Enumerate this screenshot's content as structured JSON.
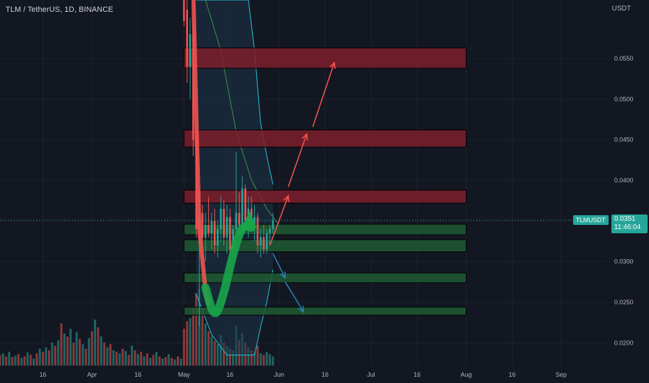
{
  "symbol": {
    "title": "TLM / TetherUS, 1D, BINANCE",
    "ticker": "TLMUSDT",
    "last_price": "0.0351",
    "countdown": "11:46:04"
  },
  "price_axis": {
    "unit": "USDT"
  },
  "colors": {
    "background": "#131722",
    "grid": "#1e222d",
    "axis_text": "#b2b5be",
    "up": "#26a69a",
    "down": "#ef5350",
    "resistance_zone": "#7e1f2a",
    "support_zone": "#1e5a32",
    "band_fill": "#1c3448",
    "band_line": "#26c6da",
    "bullish_arrow": "#19a64a",
    "bearish_arrow": "#ef5350",
    "down_projection": "#2a7fb5"
  },
  "chart_data": {
    "type": "candlestick",
    "title": "TLM / TetherUS, 1D, BINANCE",
    "ylabel": "USDT",
    "ylim": [
      0.0172,
      0.0622
    ],
    "y_ticks": [
      "0.0550",
      "0.0500",
      "0.0450",
      "0.0400",
      "0.0350",
      "0.0300",
      "0.0250",
      "0.0200"
    ],
    "y_tick_values": [
      0.055,
      0.05,
      0.045,
      0.04,
      0.035,
      0.03,
      0.025,
      0.02
    ],
    "x_ticks": [
      "16",
      "Apr",
      "16",
      "May",
      "16",
      "Jun",
      "16",
      "Jul",
      "16",
      "Aug",
      "16",
      "Sep"
    ],
    "x_tick_days": [
      15,
      31,
      46,
      61,
      76,
      92,
      107,
      122,
      137,
      153,
      168,
      184
    ],
    "x_range_days": [
      1,
      199
    ],
    "current_price": 0.0351,
    "candles_range_days": [
      61,
      90
    ],
    "candles": [
      {
        "day": 61,
        "o": 0.064,
        "h": 0.068,
        "l": 0.059,
        "c": 0.061
      },
      {
        "day": 62,
        "o": 0.061,
        "h": 0.063,
        "l": 0.052,
        "c": 0.054
      },
      {
        "day": 63,
        "o": 0.054,
        "h": 0.06,
        "l": 0.05,
        "c": 0.058
      },
      {
        "day": 64,
        "o": 0.058,
        "h": 0.06,
        "l": 0.043,
        "c": 0.045
      },
      {
        "day": 65,
        "o": 0.045,
        "h": 0.047,
        "l": 0.033,
        "c": 0.034
      },
      {
        "day": 66,
        "o": 0.034,
        "h": 0.039,
        "l": 0.022,
        "c": 0.036
      },
      {
        "day": 67,
        "o": 0.036,
        "h": 0.037,
        "l": 0.03,
        "c": 0.033
      },
      {
        "day": 68,
        "o": 0.033,
        "h": 0.036,
        "l": 0.03,
        "c": 0.0345
      },
      {
        "day": 69,
        "o": 0.0345,
        "h": 0.038,
        "l": 0.033,
        "c": 0.0335
      },
      {
        "day": 70,
        "o": 0.0335,
        "h": 0.036,
        "l": 0.0315,
        "c": 0.035
      },
      {
        "day": 71,
        "o": 0.035,
        "h": 0.0365,
        "l": 0.031,
        "c": 0.032
      },
      {
        "day": 72,
        "o": 0.032,
        "h": 0.035,
        "l": 0.0305,
        "c": 0.034
      },
      {
        "day": 73,
        "o": 0.034,
        "h": 0.038,
        "l": 0.0325,
        "c": 0.0365
      },
      {
        "day": 74,
        "o": 0.0365,
        "h": 0.0375,
        "l": 0.032,
        "c": 0.033
      },
      {
        "day": 75,
        "o": 0.033,
        "h": 0.037,
        "l": 0.031,
        "c": 0.0355
      },
      {
        "day": 76,
        "o": 0.0355,
        "h": 0.0365,
        "l": 0.03,
        "c": 0.0315
      },
      {
        "day": 77,
        "o": 0.0315,
        "h": 0.0345,
        "l": 0.0305,
        "c": 0.034
      },
      {
        "day": 78,
        "o": 0.034,
        "h": 0.0435,
        "l": 0.033,
        "c": 0.036
      },
      {
        "day": 79,
        "o": 0.036,
        "h": 0.0385,
        "l": 0.0335,
        "c": 0.0345
      },
      {
        "day": 80,
        "o": 0.0345,
        "h": 0.0405,
        "l": 0.0335,
        "c": 0.039
      },
      {
        "day": 81,
        "o": 0.039,
        "h": 0.0395,
        "l": 0.034,
        "c": 0.035
      },
      {
        "day": 82,
        "o": 0.035,
        "h": 0.038,
        "l": 0.033,
        "c": 0.0365
      },
      {
        "day": 83,
        "o": 0.0365,
        "h": 0.038,
        "l": 0.034,
        "c": 0.0345
      },
      {
        "day": 84,
        "o": 0.0345,
        "h": 0.037,
        "l": 0.0325,
        "c": 0.0355
      },
      {
        "day": 85,
        "o": 0.0355,
        "h": 0.036,
        "l": 0.031,
        "c": 0.032
      },
      {
        "day": 86,
        "o": 0.032,
        "h": 0.034,
        "l": 0.0305,
        "c": 0.033
      },
      {
        "day": 87,
        "o": 0.033,
        "h": 0.0345,
        "l": 0.031,
        "c": 0.0315
      },
      {
        "day": 88,
        "o": 0.0315,
        "h": 0.034,
        "l": 0.031,
        "c": 0.0335
      },
      {
        "day": 89,
        "o": 0.0335,
        "h": 0.0345,
        "l": 0.032,
        "c": 0.034
      },
      {
        "day": 90,
        "o": 0.034,
        "h": 0.036,
        "l": 0.0335,
        "c": 0.0351
      }
    ],
    "volume": {
      "max": 100,
      "bars": [
        {
          "day": 1,
          "v": 14,
          "up": false
        },
        {
          "day": 2,
          "v": 16,
          "up": true
        },
        {
          "day": 3,
          "v": 12,
          "up": false
        },
        {
          "day": 4,
          "v": 18,
          "up": true
        },
        {
          "day": 5,
          "v": 11,
          "up": false
        },
        {
          "day": 6,
          "v": 13,
          "up": true
        },
        {
          "day": 7,
          "v": 15,
          "up": false
        },
        {
          "day": 8,
          "v": 10,
          "up": true
        },
        {
          "day": 9,
          "v": 12,
          "up": false
        },
        {
          "day": 10,
          "v": 17,
          "up": true
        },
        {
          "day": 11,
          "v": 14,
          "up": false
        },
        {
          "day": 12,
          "v": 9,
          "up": true
        },
        {
          "day": 13,
          "v": 16,
          "up": false
        },
        {
          "day": 14,
          "v": 22,
          "up": true
        },
        {
          "day": 15,
          "v": 18,
          "up": false
        },
        {
          "day": 16,
          "v": 24,
          "up": true
        },
        {
          "day": 17,
          "v": 20,
          "up": false
        },
        {
          "day": 18,
          "v": 30,
          "up": true
        },
        {
          "day": 19,
          "v": 26,
          "up": false
        },
        {
          "day": 20,
          "v": 33,
          "up": true
        },
        {
          "day": 21,
          "v": 55,
          "up": false
        },
        {
          "day": 22,
          "v": 42,
          "up": true
        },
        {
          "day": 23,
          "v": 38,
          "up": false
        },
        {
          "day": 24,
          "v": 48,
          "up": true
        },
        {
          "day": 25,
          "v": 30,
          "up": false
        },
        {
          "day": 26,
          "v": 44,
          "up": true
        },
        {
          "day": 27,
          "v": 35,
          "up": false
        },
        {
          "day": 28,
          "v": 28,
          "up": true
        },
        {
          "day": 29,
          "v": 22,
          "up": false
        },
        {
          "day": 30,
          "v": 36,
          "up": true
        },
        {
          "day": 31,
          "v": 45,
          "up": false
        },
        {
          "day": 32,
          "v": 60,
          "up": true
        },
        {
          "day": 33,
          "v": 50,
          "up": false
        },
        {
          "day": 34,
          "v": 38,
          "up": true
        },
        {
          "day": 35,
          "v": 30,
          "up": false
        },
        {
          "day": 36,
          "v": 24,
          "up": true
        },
        {
          "day": 37,
          "v": 28,
          "up": false
        },
        {
          "day": 38,
          "v": 20,
          "up": true
        },
        {
          "day": 39,
          "v": 18,
          "up": false
        },
        {
          "day": 40,
          "v": 16,
          "up": true
        },
        {
          "day": 41,
          "v": 22,
          "up": false
        },
        {
          "day": 42,
          "v": 19,
          "up": true
        },
        {
          "day": 43,
          "v": 14,
          "up": false
        },
        {
          "day": 44,
          "v": 26,
          "up": true
        },
        {
          "day": 45,
          "v": 20,
          "up": false
        },
        {
          "day": 46,
          "v": 15,
          "up": true
        },
        {
          "day": 47,
          "v": 18,
          "up": false
        },
        {
          "day": 48,
          "v": 12,
          "up": true
        },
        {
          "day": 49,
          "v": 16,
          "up": false
        },
        {
          "day": 50,
          "v": 10,
          "up": true
        },
        {
          "day": 51,
          "v": 14,
          "up": false
        },
        {
          "day": 52,
          "v": 18,
          "up": true
        },
        {
          "day": 53,
          "v": 12,
          "up": false
        },
        {
          "day": 54,
          "v": 9,
          "up": true
        },
        {
          "day": 55,
          "v": 11,
          "up": false
        },
        {
          "day": 56,
          "v": 15,
          "up": true
        },
        {
          "day": 57,
          "v": 10,
          "up": false
        },
        {
          "day": 58,
          "v": 8,
          "up": true
        },
        {
          "day": 59,
          "v": 12,
          "up": false
        },
        {
          "day": 60,
          "v": 9,
          "up": true
        },
        {
          "day": 61,
          "v": 48,
          "up": false
        },
        {
          "day": 62,
          "v": 58,
          "up": false
        },
        {
          "day": 63,
          "v": 62,
          "up": true
        },
        {
          "day": 64,
          "v": 75,
          "up": false
        },
        {
          "day": 65,
          "v": 95,
          "up": false
        },
        {
          "day": 66,
          "v": 100,
          "up": true
        },
        {
          "day": 67,
          "v": 70,
          "up": false
        },
        {
          "day": 68,
          "v": 55,
          "up": true
        },
        {
          "day": 69,
          "v": 45,
          "up": false
        },
        {
          "day": 70,
          "v": 38,
          "up": true
        },
        {
          "day": 71,
          "v": 32,
          "up": false
        },
        {
          "day": 72,
          "v": 28,
          "up": true
        },
        {
          "day": 73,
          "v": 40,
          "up": true
        },
        {
          "day": 74,
          "v": 30,
          "up": false
        },
        {
          "day": 75,
          "v": 26,
          "up": true
        },
        {
          "day": 76,
          "v": 22,
          "up": false
        },
        {
          "day": 77,
          "v": 20,
          "up": true
        },
        {
          "day": 78,
          "v": 52,
          "up": true
        },
        {
          "day": 79,
          "v": 34,
          "up": false
        },
        {
          "day": 80,
          "v": 42,
          "up": true
        },
        {
          "day": 81,
          "v": 30,
          "up": false
        },
        {
          "day": 82,
          "v": 24,
          "up": true
        },
        {
          "day": 83,
          "v": 20,
          "up": false
        },
        {
          "day": 84,
          "v": 18,
          "up": true
        },
        {
          "day": 85,
          "v": 26,
          "up": false
        },
        {
          "day": 86,
          "v": 16,
          "up": true
        },
        {
          "day": 87,
          "v": 14,
          "up": false
        },
        {
          "day": 88,
          "v": 18,
          "up": true
        },
        {
          "day": 89,
          "v": 15,
          "up": true
        },
        {
          "day": 90,
          "v": 12,
          "up": true
        }
      ]
    },
    "zones": [
      {
        "kind": "resistance",
        "top": 0.0563,
        "bottom": 0.0538,
        "day_start": 61,
        "day_end": 153
      },
      {
        "kind": "resistance",
        "top": 0.0462,
        "bottom": 0.0441,
        "day_start": 61,
        "day_end": 153
      },
      {
        "kind": "resistance",
        "top": 0.0388,
        "bottom": 0.0372,
        "day_start": 61,
        "day_end": 153
      },
      {
        "kind": "support",
        "top": 0.0346,
        "bottom": 0.0333,
        "day_start": 61,
        "day_end": 153
      },
      {
        "kind": "support",
        "top": 0.0327,
        "bottom": 0.0312,
        "day_start": 61,
        "day_end": 153
      },
      {
        "kind": "support",
        "top": 0.0286,
        "bottom": 0.0274,
        "day_start": 61,
        "day_end": 153
      },
      {
        "kind": "support",
        "top": 0.0244,
        "bottom": 0.0234,
        "day_start": 61,
        "day_end": 153
      }
    ],
    "band": {
      "upper": [
        {
          "day": 65,
          "p": 0.07
        },
        {
          "day": 75,
          "p": 0.07
        },
        {
          "day": 82,
          "p": 0.068
        },
        {
          "day": 84,
          "p": 0.056
        },
        {
          "day": 86,
          "p": 0.047
        },
        {
          "day": 88,
          "p": 0.043
        },
        {
          "day": 90,
          "p": 0.0395
        }
      ],
      "lower": [
        {
          "day": 65,
          "p": 0.026
        },
        {
          "day": 70,
          "p": 0.021
        },
        {
          "day": 75,
          "p": 0.0185
        },
        {
          "day": 80,
          "p": 0.0185
        },
        {
          "day": 84,
          "p": 0.0185
        },
        {
          "day": 86,
          "p": 0.022
        },
        {
          "day": 88,
          "p": 0.025
        },
        {
          "day": 90,
          "p": 0.029
        }
      ],
      "mid": [
        {
          "day": 68,
          "p": 0.069
        },
        {
          "day": 73,
          "p": 0.056
        },
        {
          "day": 78,
          "p": 0.046
        },
        {
          "day": 83,
          "p": 0.04
        },
        {
          "day": 88,
          "p": 0.0365
        },
        {
          "day": 92,
          "p": 0.0345
        }
      ]
    },
    "drawings": {
      "red_path": [
        {
          "day": 64,
          "p": 0.064
        },
        {
          "day": 65,
          "p": 0.048
        },
        {
          "day": 66,
          "p": 0.034
        },
        {
          "day": 68,
          "p": 0.0265
        },
        {
          "day": 69,
          "p": 0.0248
        }
      ],
      "bullish_swoosh": [
        {
          "day": 68,
          "p": 0.0268
        },
        {
          "day": 71,
          "p": 0.0228
        },
        {
          "day": 74,
          "p": 0.026
        },
        {
          "day": 77,
          "p": 0.031
        },
        {
          "day": 80,
          "p": 0.0345
        },
        {
          "day": 83,
          "p": 0.0342
        }
      ],
      "bullish_arrow_end": {
        "day": 82,
        "p": 0.035
      },
      "up_arrows": [
        {
          "from_day": 89,
          "from_p": 0.032,
          "to_day": 95,
          "to_p": 0.0381
        },
        {
          "from_day": 95,
          "from_p": 0.0392,
          "to_day": 101,
          "to_p": 0.0457
        },
        {
          "from_day": 103,
          "from_p": 0.0466,
          "to_day": 110,
          "to_p": 0.0545
        }
      ],
      "down_arrows": [
        {
          "from_day": 90,
          "from_p": 0.031,
          "to_day": 94,
          "to_p": 0.028
        },
        {
          "from_day": 94,
          "from_p": 0.0275,
          "to_day": 100,
          "to_p": 0.0238
        }
      ]
    }
  }
}
